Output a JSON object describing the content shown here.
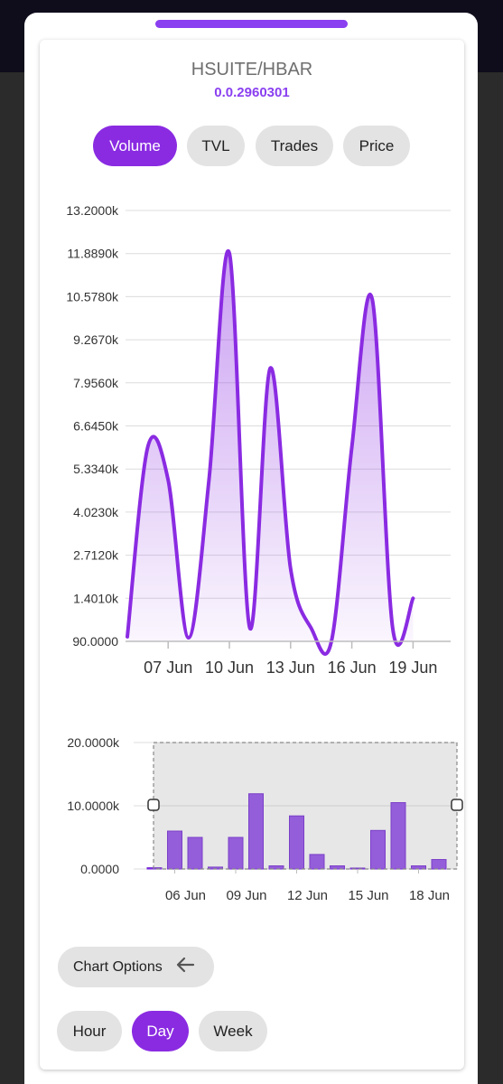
{
  "pair": {
    "title": "HSUITE/HBAR",
    "token_id": "0.0.2960301"
  },
  "metric_tabs": [
    {
      "label": "Volume",
      "active": true
    },
    {
      "label": "TVL",
      "active": false
    },
    {
      "label": "Trades",
      "active": false
    },
    {
      "label": "Price",
      "active": false
    }
  ],
  "chart_options_label": "Chart Options",
  "interval_tabs": [
    {
      "label": "Hour",
      "active": false
    },
    {
      "label": "Day",
      "active": true
    },
    {
      "label": "Week",
      "active": false
    }
  ],
  "colors": {
    "accent": "#8a2be2",
    "pill_inactive": "#e3e3e3",
    "text_muted": "#6f6f6f"
  },
  "icons": {
    "chart_options": "arrow-left-icon"
  },
  "chart_data": [
    {
      "type": "area",
      "x": [
        "05 Jun",
        "06 Jun",
        "07 Jun",
        "08 Jun",
        "09 Jun",
        "10 Jun",
        "11 Jun",
        "12 Jun",
        "13 Jun",
        "14 Jun",
        "15 Jun",
        "16 Jun",
        "17 Jun",
        "18 Jun",
        "19 Jun",
        "20 Jun"
      ],
      "y": [
        230,
        6000,
        5000,
        200,
        5000,
        11900,
        500,
        8400,
        2300,
        500,
        90,
        6000,
        10500,
        500,
        1400,
        1400
      ],
      "ylim": [
        90,
        13200
      ],
      "y_ticks": [
        "13.2000k",
        "11.8890k",
        "10.5780k",
        "9.2670k",
        "7.9560k",
        "6.6450k",
        "5.3340k",
        "4.0230k",
        "2.7120k",
        "1.4010k",
        "90.0000"
      ],
      "x_ticks": [
        "07 Jun",
        "10 Jun",
        "13 Jun",
        "16 Jun",
        "19 Jun"
      ],
      "grid": true
    },
    {
      "type": "bar",
      "categories": [
        "05 Jun",
        "06 Jun",
        "07 Jun",
        "08 Jun",
        "09 Jun",
        "10 Jun",
        "11 Jun",
        "12 Jun",
        "13 Jun",
        "14 Jun",
        "15 Jun",
        "16 Jun",
        "17 Jun",
        "18 Jun",
        "19 Jun",
        "20 Jun"
      ],
      "values": [
        200,
        6000,
        5000,
        300,
        5000,
        11900,
        500,
        8400,
        2300,
        500,
        150,
        6100,
        10500,
        500,
        1500,
        0
      ],
      "ylim": [
        0,
        20000
      ],
      "y_ticks": [
        "20.0000k",
        "10.0000k",
        "0.0000"
      ],
      "x_ticks": [
        "06 Jun",
        "09 Jun",
        "12 Jun",
        "15 Jun",
        "18 Jun"
      ],
      "grid": true
    }
  ]
}
